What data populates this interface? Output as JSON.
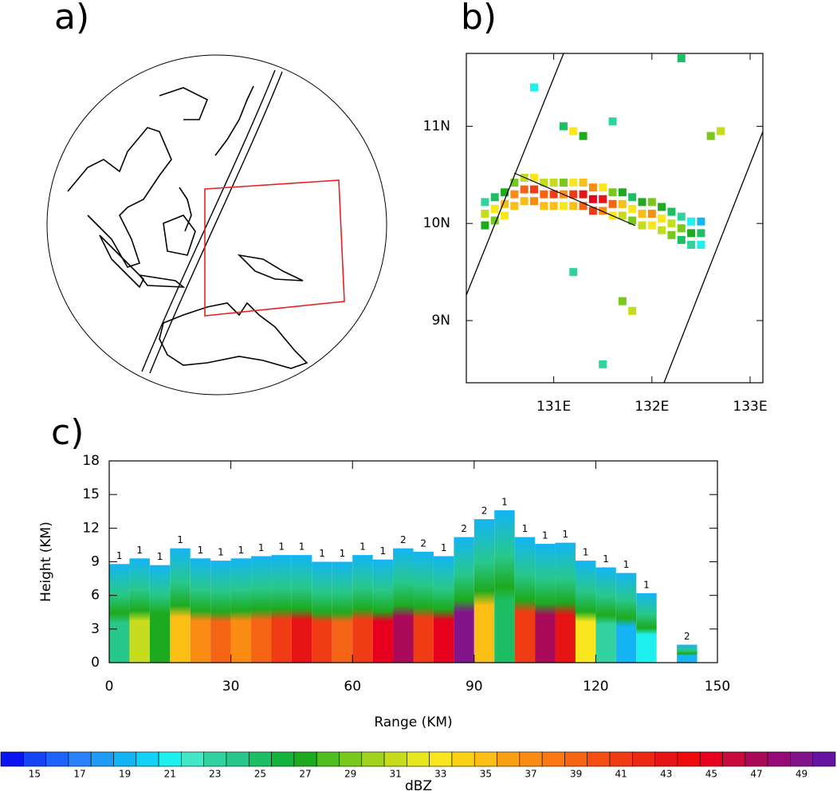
{
  "chart_data": [
    {
      "type": "globe",
      "panel_label": "a)"
    },
    {
      "type": "map",
      "panel_label": "b)",
      "xlim": [
        130.11,
        133.13
      ],
      "ylim": [
        8.36,
        11.75
      ],
      "xticks": [
        {
          "value": 131,
          "label": "131E"
        },
        {
          "value": 132,
          "label": "132E"
        },
        {
          "value": 133,
          "label": "133E"
        }
      ],
      "yticks": [
        {
          "value": 9,
          "label": "9N"
        },
        {
          "value": 10,
          "label": "10N"
        },
        {
          "value": 11,
          "label": "11N"
        }
      ],
      "x": [
        130.3,
        130.4,
        130.5,
        130.6,
        130.7,
        130.8,
        130.9,
        131.0,
        131.1,
        131.2,
        131.3,
        131.4,
        131.5,
        131.6,
        131.7,
        131.8,
        131.9,
        132.0,
        132.1,
        132.2,
        132.3,
        132.4,
        132.5,
        130.3,
        130.4,
        130.5,
        130.6,
        130.7,
        130.8,
        130.9,
        131.0,
        131.1,
        131.2,
        131.3,
        131.4,
        131.5,
        131.6,
        131.7,
        131.8,
        131.9,
        132.0,
        132.1,
        132.2,
        132.3,
        132.4,
        132.5,
        130.3,
        130.4,
        130.5,
        130.6,
        130.7,
        130.8,
        130.9,
        131.0,
        131.1,
        131.2,
        131.3,
        131.4,
        131.5,
        131.6,
        131.7,
        131.8,
        131.9,
        132.0,
        132.1,
        132.2,
        132.3,
        132.4,
        132.5,
        131.1,
        131.2,
        131.3,
        132.6,
        132.7,
        131.6,
        131.7,
        131.8,
        131.5,
        132.3,
        131.2,
        130.8
      ],
      "y": [
        10.1,
        10.15,
        10.2,
        10.3,
        10.35,
        10.35,
        10.3,
        10.3,
        10.3,
        10.3,
        10.3,
        10.25,
        10.25,
        10.2,
        10.2,
        10.15,
        10.1,
        10.1,
        10.05,
        10.0,
        9.95,
        9.9,
        9.9,
        9.98,
        10.03,
        10.08,
        10.18,
        10.23,
        10.23,
        10.18,
        10.18,
        10.18,
        10.18,
        10.18,
        10.13,
        10.13,
        10.08,
        10.08,
        10.03,
        9.98,
        9.98,
        9.93,
        9.88,
        9.83,
        9.78,
        9.78,
        10.22,
        10.27,
        10.32,
        10.42,
        10.47,
        10.47,
        10.42,
        10.42,
        10.42,
        10.42,
        10.42,
        10.37,
        10.37,
        10.32,
        10.32,
        10.27,
        10.22,
        10.22,
        10.17,
        10.12,
        10.07,
        10.02,
        10.02,
        11.0,
        10.95,
        10.9,
        10.9,
        10.95,
        11.05,
        9.2,
        9.1,
        8.55,
        11.7,
        9.5,
        11.4
      ],
      "values": [
        31,
        33,
        35,
        37,
        39,
        41,
        39,
        41,
        37,
        41,
        43,
        45,
        43,
        39,
        35,
        33,
        35,
        37,
        33,
        31,
        29,
        27,
        25,
        27,
        29,
        33,
        35,
        35,
        37,
        35,
        35,
        33,
        35,
        39,
        41,
        37,
        33,
        31,
        29,
        31,
        33,
        31,
        29,
        25,
        23,
        21,
        23,
        25,
        27,
        29,
        31,
        33,
        31,
        31,
        29,
        33,
        35,
        37,
        33,
        29,
        27,
        25,
        27,
        29,
        27,
        25,
        23,
        21,
        19,
        25,
        33,
        27,
        29,
        31,
        23,
        29,
        31,
        23,
        25,
        23,
        21
      ]
    },
    {
      "type": "bar",
      "panel_label": "c)",
      "xlabel": "Range (KM)",
      "ylabel": "Height (KM)",
      "xlim": [
        0,
        150
      ],
      "xticks": [
        0,
        30,
        60,
        90,
        120,
        150
      ],
      "ylim": [
        0,
        18
      ],
      "yticks": [
        0,
        3,
        6,
        9,
        12,
        15,
        18
      ],
      "bar_width": 5,
      "x": [
        2.5,
        7.5,
        12.5,
        17.5,
        22.5,
        27.5,
        32.5,
        37.5,
        42.5,
        47.5,
        52.5,
        57.5,
        62.5,
        67.5,
        72.5,
        77.5,
        82.5,
        87.5,
        92.5,
        97.5,
        102.5,
        107.5,
        112.5,
        117.5,
        122.5,
        127.5,
        132.5,
        142.5
      ],
      "tops": [
        8.8,
        9.3,
        8.7,
        10.2,
        9.3,
        9.1,
        9.3,
        9.5,
        9.6,
        9.6,
        9.0,
        9.0,
        9.6,
        9.2,
        10.2,
        9.9,
        9.5,
        11.2,
        12.8,
        13.6,
        11.2,
        10.6,
        10.7,
        9.1,
        8.5,
        8.0,
        6.2,
        1.6
      ],
      "peak_dbz": [
        24,
        31,
        27,
        35,
        37,
        39,
        37,
        39,
        41,
        43,
        41,
        39,
        41,
        45,
        47,
        41,
        45,
        49,
        35,
        25,
        41,
        47,
        43,
        33,
        23,
        19,
        21,
        19
      ],
      "counts": [
        1,
        1,
        1,
        1,
        1,
        1,
        1,
        1,
        1,
        1,
        1,
        1,
        1,
        1,
        2,
        2,
        1,
        2,
        2,
        1,
        1,
        1,
        1,
        1,
        1,
        1,
        1,
        2
      ],
      "colorbar": {
        "label": "dBZ",
        "lim": [
          13.5,
          50.5
        ],
        "ticks": [
          15,
          17,
          19,
          21,
          23,
          25,
          27,
          29,
          31,
          33,
          35,
          37,
          39,
          41,
          43,
          45,
          47,
          49
        ],
        "colors": [
          "#0a14f0",
          "#1446f5",
          "#1e64fa",
          "#2882fa",
          "#1e9bf5",
          "#14b4f5",
          "#14d2f5",
          "#1ef0f0",
          "#46e6c8",
          "#32d2a0",
          "#28c88c",
          "#1ebe64",
          "#14b43c",
          "#1eaa1e",
          "#50be1e",
          "#78c81e",
          "#a0d21e",
          "#c8dc1e",
          "#e6e61e",
          "#fae61e",
          "#fad214",
          "#fabe14",
          "#faa014",
          "#fa8c14",
          "#fa7814",
          "#f56414",
          "#f55014",
          "#f03c14",
          "#eb2814",
          "#e61414",
          "#f00a0a",
          "#e6001e",
          "#c80a3c",
          "#aa0a5a",
          "#960a78",
          "#82148c",
          "#6414a0"
        ]
      }
    }
  ]
}
